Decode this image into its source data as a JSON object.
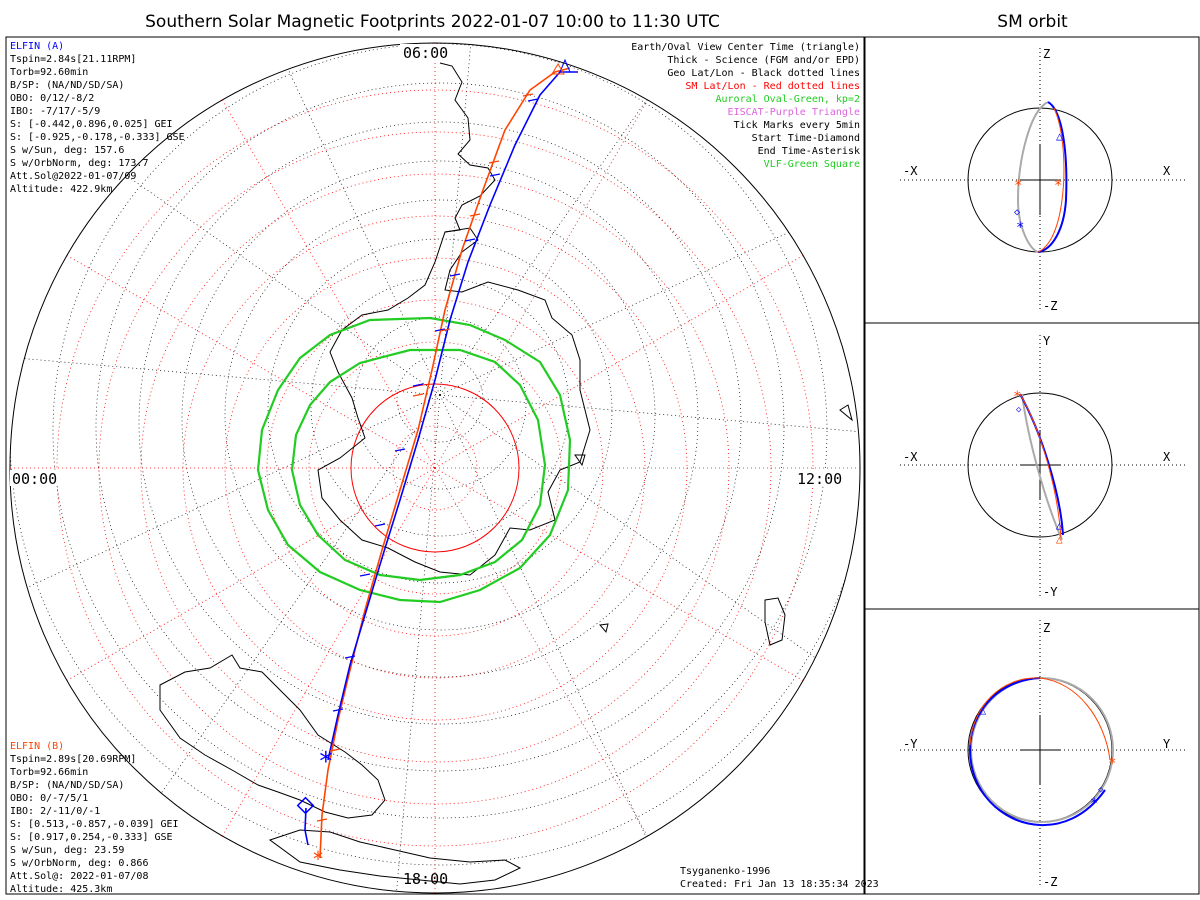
{
  "title": "Southern Solar Magnetic Footprints 2022-01-07 10:00 to 11:30 UTC",
  "orbit_title": "SM orbit",
  "mlt_labels": [
    "06:00",
    "00:00",
    "12:00",
    "18:00"
  ],
  "elfin_a": {
    "name": "ELFIN (A)",
    "color": "#0000ff",
    "lines": [
      "Tspin=2.84s[21.11RPM]",
      "Torb=92.60min",
      "B/SP: (NA/ND/SD/SA)",
      "OBO: 0/12/-8/2",
      "IBO: -7/17/-5/9",
      "S: [-0.442,0.896,0.025] GEI",
      "S: [-0.925,-0.178,-0.333] GSE",
      "S w/Sun, deg: 157.6",
      "S w/OrbNorm, deg: 173.7",
      "Att.Sol@2022-01-07/09",
      "Altitude: 422.9km"
    ]
  },
  "elfin_b": {
    "name": "ELFIN (B)",
    "color": "#ff4400",
    "lines": [
      "Tspin=2.89s[20.69RPM]",
      "Torb=92.66min",
      "B/SP: (NA/ND/SD/SA)",
      "OBO: 0/-7/5/1",
      "IBO: 2/-11/0/-1",
      "S: [0.513,-0.857,-0.039] GEI",
      "S: [0.917,0.254,-0.333] GSE",
      "S w/Sun, deg: 23.59",
      "S w/OrbNorm, deg: 0.866",
      "Att.Sol@: 2022-01-07/08",
      "Altitude: 425.3km"
    ]
  },
  "legend": [
    {
      "text": "Earth/Oval View Center Time (triangle)",
      "color": "#000000"
    },
    {
      "text": "Thick - Science (FGM and/or EPD)",
      "color": "#000000"
    },
    {
      "text": "Geo Lat/Lon - Black dotted lines",
      "color": "#000000"
    },
    {
      "text": "SM Lat/Lon - Red dotted lines",
      "color": "#ff0000"
    },
    {
      "text": "Auroral Oval-Green, kp=2",
      "color": "#22cc22"
    },
    {
      "text": "EISCAT-Purple Triangle",
      "color": "#dd66dd"
    },
    {
      "text": "Tick Marks every 5min",
      "color": "#000000"
    },
    {
      "text": "Start Time-Diamond",
      "color": "#000000"
    },
    {
      "text": "End Time-Asterisk",
      "color": "#000000"
    },
    {
      "text": "VLF-Green Square",
      "color": "#22cc22"
    }
  ],
  "credit": [
    "Tsyganenko-1996",
    "Created: Fri Jan 13 18:35:34 2023"
  ],
  "orbit_panels": [
    {
      "top": "Z",
      "bottom": "-Z",
      "left": "-X",
      "right": "X"
    },
    {
      "top": "Y",
      "bottom": "-Y",
      "left": "-X",
      "right": "X"
    },
    {
      "top": "Z",
      "bottom": "-Z",
      "left": "-Y",
      "right": "Y"
    }
  ],
  "colors": {
    "elfin_a": "#0000ff",
    "elfin_b": "#ff4400",
    "auroral_oval": "#22cc22",
    "sm_grid": "#ff0000",
    "geo_grid": "#000000",
    "orbit_gray": "#aaaaaa"
  }
}
